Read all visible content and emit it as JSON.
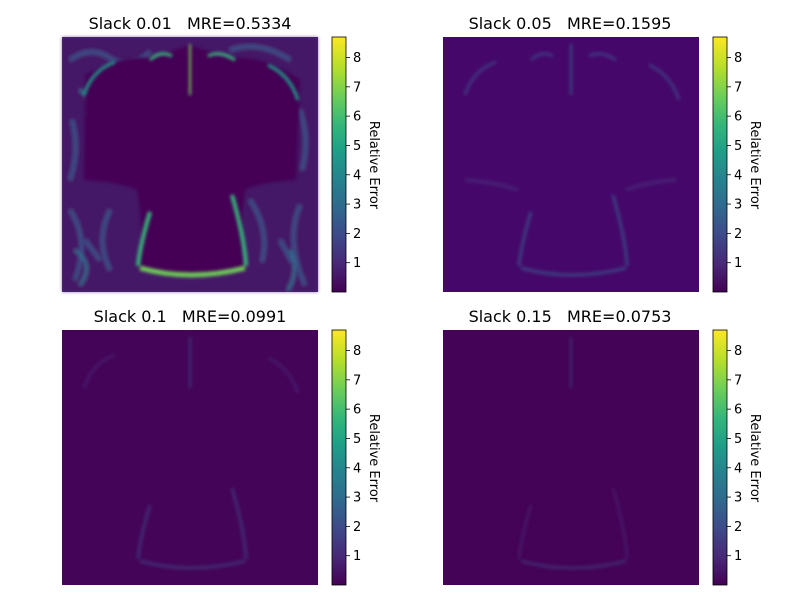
{
  "figure": {
    "colormap": "viridis",
    "colormap_stops": [
      "#440154",
      "#482878",
      "#3e4989",
      "#31688e",
      "#26828e",
      "#1f9e89",
      "#35b779",
      "#6ece58",
      "#b5de2b",
      "#fde725"
    ],
    "panel_background": "#440154",
    "colorbar_label": "Relative Error",
    "colorbar_ticks": [
      "1",
      "2",
      "3",
      "4",
      "5",
      "6",
      "7",
      "8"
    ],
    "colorbar_range": [
      0,
      8.7
    ]
  },
  "chart_data": [
    {
      "type": "heatmap",
      "title": "Slack 0.01   MRE=0.5334",
      "slack": 0.01,
      "mre": 0.5334,
      "vmin": 0,
      "vmax": 8.7,
      "colorbar_label": "Relative Error",
      "colorbar_ticks": [
        1,
        2,
        3,
        4,
        5,
        6,
        7,
        8
      ],
      "max_relative_error": 8.7
    },
    {
      "type": "heatmap",
      "title": "Slack 0.05   MRE=0.1595",
      "slack": 0.05,
      "mre": 0.1595,
      "vmin": 0,
      "vmax": 8.7,
      "colorbar_label": "Relative Error",
      "colorbar_ticks": [
        1,
        2,
        3,
        4,
        5,
        6,
        7,
        8
      ],
      "max_relative_error": 2.0
    },
    {
      "type": "heatmap",
      "title": "Slack 0.1   MRE=0.0991",
      "slack": 0.1,
      "mre": 0.0991,
      "vmin": 0,
      "vmax": 8.7,
      "colorbar_label": "Relative Error",
      "colorbar_ticks": [
        1,
        2,
        3,
        4,
        5,
        6,
        7,
        8
      ],
      "max_relative_error": 1.2
    },
    {
      "type": "heatmap",
      "title": "Slack 0.15   MRE=0.0753",
      "slack": 0.15,
      "mre": 0.0753,
      "vmin": 0,
      "vmax": 8.7,
      "colorbar_label": "Relative Error",
      "colorbar_ticks": [
        1,
        2,
        3,
        4,
        5,
        6,
        7,
        8
      ],
      "max_relative_error": 1.0
    }
  ]
}
